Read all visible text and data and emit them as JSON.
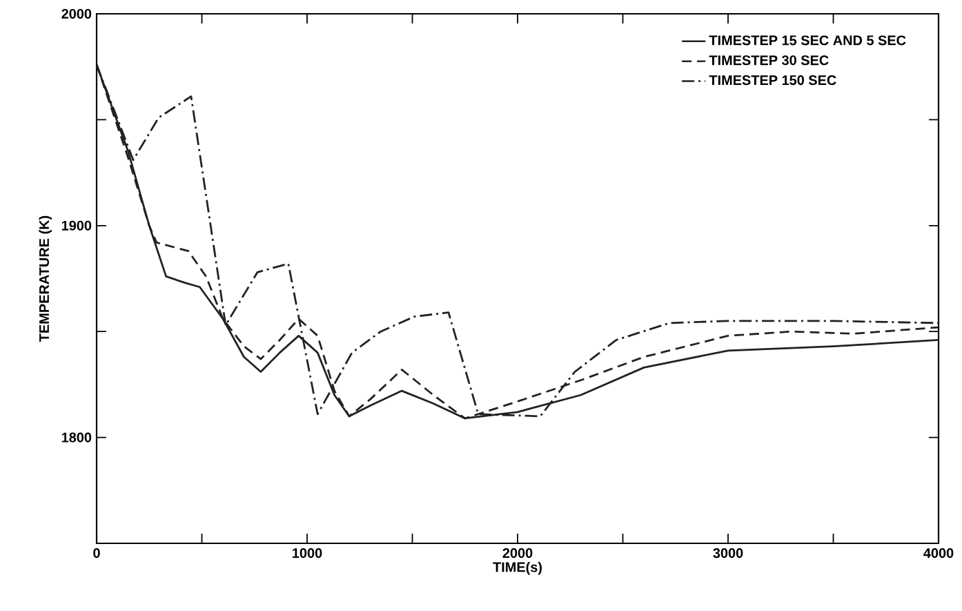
{
  "chart_data": {
    "type": "line",
    "xlabel": "TIME(s)",
    "ylabel": "TEMPERATURE (K)",
    "xlim": [
      0,
      4000
    ],
    "ylim": [
      1750,
      2000
    ],
    "xticks": [
      0,
      {
        "value": 500,
        "label": null
      },
      1000,
      {
        "value": 1500,
        "label": null
      },
      2000,
      {
        "value": 2500,
        "label": null
      },
      3000,
      {
        "value": 3500,
        "label": null
      },
      4000
    ],
    "yticks": [
      {
        "value": 1750,
        "label": null
      },
      1800,
      {
        "value": 1850,
        "label": null
      },
      1900,
      {
        "value": 1950,
        "label": null
      },
      2000
    ],
    "grid": false,
    "legend": "top right",
    "series": [
      {
        "name": "TIMESTEP 15 SEC AND 5 SEC",
        "color": "#222222",
        "line_style": "solid",
        "x": [
          0,
          150,
          250,
          330,
          420,
          490,
          600,
          700,
          780,
          870,
          960,
          1050,
          1130,
          1200,
          1300,
          1450,
          1600,
          1750,
          2000,
          2300,
          2600,
          3000,
          3500,
          4000
        ],
        "values": [
          1976,
          1935,
          1900,
          1876,
          1873,
          1871,
          1856,
          1838,
          1831,
          1840,
          1848,
          1840,
          1820,
          1810,
          1815,
          1822,
          1816,
          1809,
          1812,
          1820,
          1833,
          1841,
          1843,
          1846
        ]
      },
      {
        "name": "TIMESTEP 30 SEC",
        "color": "#222222",
        "line_style": "dashed",
        "x": [
          0,
          150,
          250,
          285,
          436,
          520,
          600,
          700,
          780,
          870,
          960,
          1050,
          1130,
          1200,
          1300,
          1450,
          1600,
          1750,
          2000,
          2300,
          2600,
          3000,
          3300,
          3600,
          4000
        ],
        "values": [
          1976,
          1932,
          1900,
          1892,
          1888,
          1876,
          1856,
          1843,
          1837,
          1846,
          1856,
          1848,
          1822,
          1810,
          1818,
          1832,
          1820,
          1809,
          1817,
          1827,
          1838,
          1848,
          1850,
          1849,
          1852
        ]
      },
      {
        "name": "TIMESTEP 150 SEC",
        "color": "#222222",
        "line_style": "dashdot",
        "x": [
          0,
          174,
          295,
          449,
          613,
          764,
          911,
          1050,
          1213,
          1350,
          1508,
          1672,
          1813,
          2108,
          2272,
          2469,
          2721,
          3000,
          3500,
          4000
        ],
        "values": [
          1976,
          1931,
          1951,
          1961,
          1853,
          1878,
          1882,
          1811,
          1840,
          1850,
          1857,
          1859,
          1811,
          1810,
          1831,
          1846,
          1854,
          1855,
          1855,
          1854
        ]
      }
    ]
  }
}
